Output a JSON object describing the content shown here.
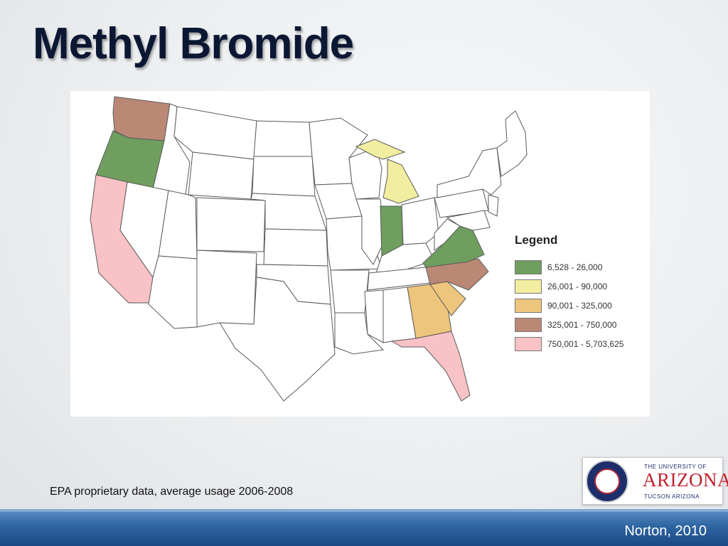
{
  "slide": {
    "title": "Methyl Bromide",
    "source_note": "EPA proprietary data, average usage 2006-2008",
    "footer": "Norton, 2010"
  },
  "map": {
    "legend": {
      "title": "Legend",
      "classes": [
        {
          "label": "6,528 - 26,000",
          "color": "#6f9e5f"
        },
        {
          "label": "26,001 - 90,000",
          "color": "#f2eea0"
        },
        {
          "label": "90,001 - 325,000",
          "color": "#eec57c"
        },
        {
          "label": "325,001 - 750,000",
          "color": "#bb8876"
        },
        {
          "label": "750,001 - 5,703,625",
          "color": "#f9c2c6"
        }
      ]
    },
    "default_color": "#ffffff",
    "state_classes": {
      "OR": 0,
      "IN": 0,
      "VA": 0,
      "MI": 1,
      "GA": 2,
      "SC": 2,
      "WA": 3,
      "NC": 3,
      "CA": 4,
      "FL": 4
    }
  },
  "logo": {
    "top": "THE UNIVERSITY OF",
    "name": "ARIZONA",
    "bottom": "TUCSON ARIZONA"
  }
}
